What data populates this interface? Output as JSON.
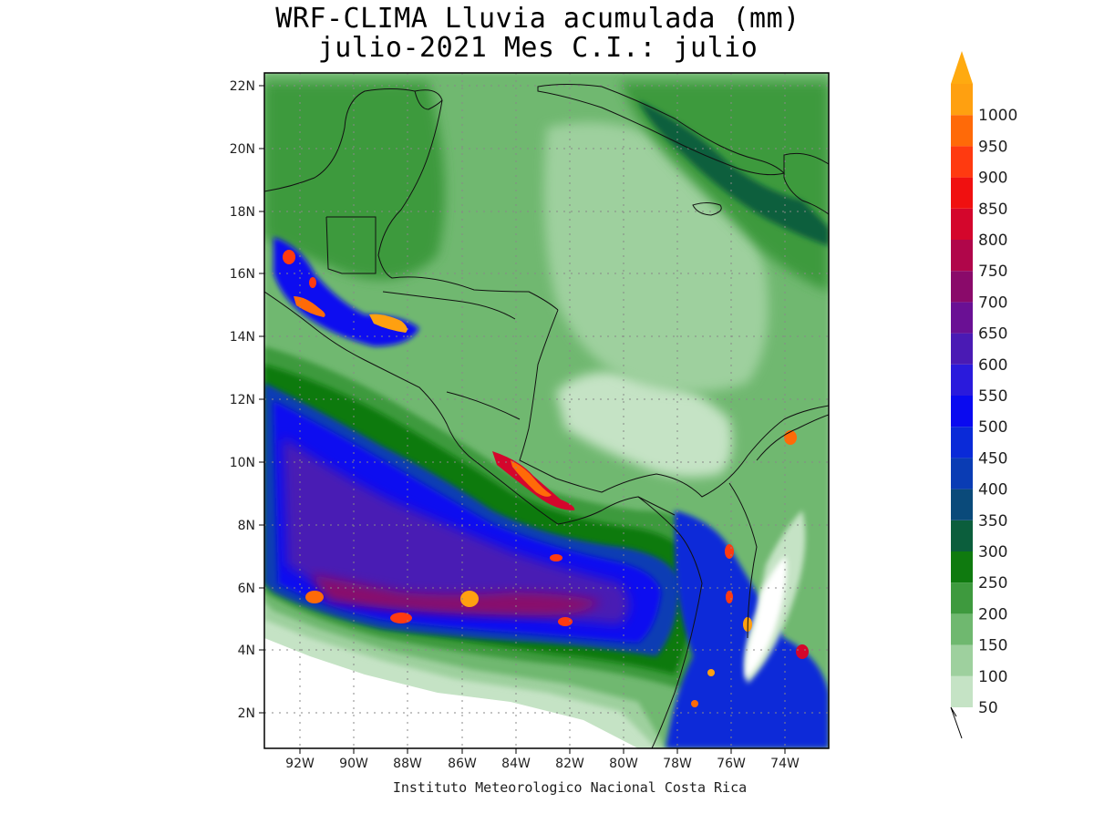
{
  "title": {
    "line1": "WRF-CLIMA Lluvia acumulada (mm)",
    "line2": "julio-2021 Mes C.I.: julio"
  },
  "credit": "Instituto Meteorologico Nacional Costa Rica",
  "map": {
    "lat_ticks": [
      "22N",
      "20N",
      "18N",
      "16N",
      "14N",
      "12N",
      "10N",
      "8N",
      "6N",
      "4N",
      "2N"
    ],
    "lon_ticks": [
      "92W",
      "90W",
      "88W",
      "86W",
      "84W",
      "82W",
      "80W",
      "78W",
      "76W",
      "74W"
    ],
    "lat_range": [
      1,
      22.5
    ],
    "lon_range": [
      -93.3,
      -72.4
    ]
  },
  "colorbar": {
    "labels": [
      "50",
      "100",
      "150",
      "200",
      "250",
      "300",
      "350",
      "400",
      "450",
      "500",
      "550",
      "600",
      "650",
      "700",
      "750",
      "800",
      "850",
      "900",
      "950",
      "1000"
    ],
    "colors": [
      "#c5e3c5",
      "#9ed09e",
      "#6fb86f",
      "#3e9a3e",
      "#0f7a0f",
      "#0b5e3c",
      "#0a4a7a",
      "#0a3cb4",
      "#0a2ad8",
      "#0a0af0",
      "#2a1adc",
      "#4a1ab4",
      "#6a1094",
      "#8a0a6a",
      "#b0064a",
      "#d4062c",
      "#f01010",
      "#ff3a10",
      "#ff6a08",
      "#ffa010"
    ],
    "arrow_color": "#ffaa10"
  }
}
